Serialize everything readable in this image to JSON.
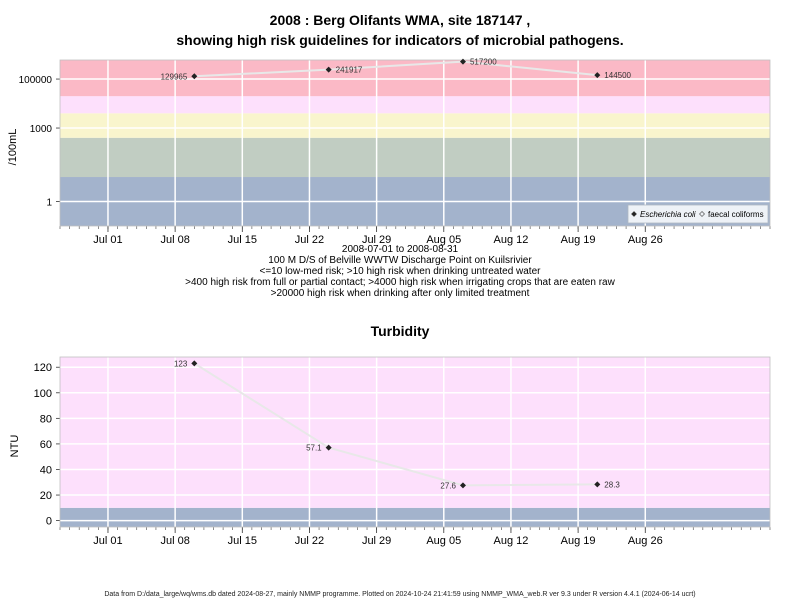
{
  "chart_data": [
    {
      "type": "line",
      "title": "2008 : Berg Olifants WMA, site 187147 ,",
      "subtitle": "showing high risk guidelines for indicators of microbial pathogens.",
      "ylabel": "/100mL",
      "yscale": "log",
      "ylim": [
        0.1,
        600000
      ],
      "ytick_values": [
        1,
        1000,
        100000
      ],
      "ytick_labels": [
        "1",
        "1000",
        "100000"
      ],
      "xlim": [
        "2008-06-26",
        "2008-09-08"
      ],
      "xtick_dates": [
        "2008-07-01",
        "2008-07-08",
        "2008-07-15",
        "2008-07-22",
        "2008-07-29",
        "2008-08-05",
        "2008-08-12",
        "2008-08-19",
        "2008-08-26"
      ],
      "xtick_labels": [
        "Jul 01",
        "Jul 08",
        "Jul 15",
        "Jul 22",
        "Jul 29",
        "Aug 05",
        "Aug 12",
        "Aug 19",
        "Aug 26"
      ],
      "grid": true,
      "bands": [
        {
          "from": 0.1,
          "to": 10,
          "color": "#a3b3cc"
        },
        {
          "from": 10,
          "to": 400,
          "color": "#c1cdc2"
        },
        {
          "from": 400,
          "to": 4000,
          "color": "#f9f5cd"
        },
        {
          "from": 4000,
          "to": 20000,
          "color": "#fde0fc"
        },
        {
          "from": 20000,
          "to": 600000,
          "color": "#fbb9c6"
        }
      ],
      "legend": {
        "placement": "bottom-right",
        "entries": [
          "Escherichia coli",
          "faecal coliforms"
        ]
      },
      "series": [
        {
          "name": "Escherichia coli",
          "x": [
            "2008-07-10",
            "2008-07-24",
            "2008-08-07",
            "2008-08-21"
          ],
          "y": [
            129965,
            241917,
            517200,
            144500
          ],
          "labels": [
            "129965",
            "241917",
            "517200",
            "144500"
          ]
        }
      ],
      "caption_lines": [
        "2008-07-01 to 2008-08-31",
        "100 M D/S of Belville WWTW Discharge Point on Kuilsrivier",
        "<=10 low-med risk; >10 high risk when drinking untreated water",
        ">400 high risk from full or partial contact; >4000 high risk when irrigating crops that are eaten raw",
        ">20000 high risk when drinking after only limited treatment"
      ]
    },
    {
      "type": "line",
      "title": "Turbidity",
      "ylabel": "NTU",
      "ylim": [
        -5,
        128
      ],
      "ytick_values": [
        0,
        20,
        40,
        60,
        80,
        100,
        120
      ],
      "ytick_labels": [
        "0",
        "20",
        "40",
        "60",
        "80",
        "100",
        "120"
      ],
      "xlim": [
        "2008-06-26",
        "2008-09-08"
      ],
      "xtick_dates": [
        "2008-07-01",
        "2008-07-08",
        "2008-07-15",
        "2008-07-22",
        "2008-07-29",
        "2008-08-05",
        "2008-08-12",
        "2008-08-19",
        "2008-08-26"
      ],
      "xtick_labels": [
        "Jul 01",
        "Jul 08",
        "Jul 15",
        "Jul 22",
        "Jul 29",
        "Aug 05",
        "Aug 12",
        "Aug 19",
        "Aug 26"
      ],
      "grid": true,
      "bands": [
        {
          "from": -5,
          "to": 10,
          "color": "#a3b3cc"
        },
        {
          "from": 10,
          "to": 128,
          "color": "#fde0fc"
        }
      ],
      "series": [
        {
          "x": [
            "2008-07-10",
            "2008-07-24",
            "2008-08-07",
            "2008-08-21"
          ],
          "y": [
            123,
            57.1,
            27.6,
            28.3
          ],
          "labels": [
            "123",
            "57.1",
            "27.6",
            "28.3"
          ]
        }
      ]
    }
  ],
  "footer": "Data from D:/data_large/wq/wms.db dated 2024-08-27, mainly NMMP programme. Plotted on 2024-10-24 21:41:59 using NMMP_WMA_web.R ver 9.3 under R version 4.4.1 (2024-06-14 ucrt)",
  "colors": {
    "line": "#e8e8e8",
    "marker": "#222222",
    "grid": "#ffffff",
    "frame": "#c0c0c0"
  }
}
